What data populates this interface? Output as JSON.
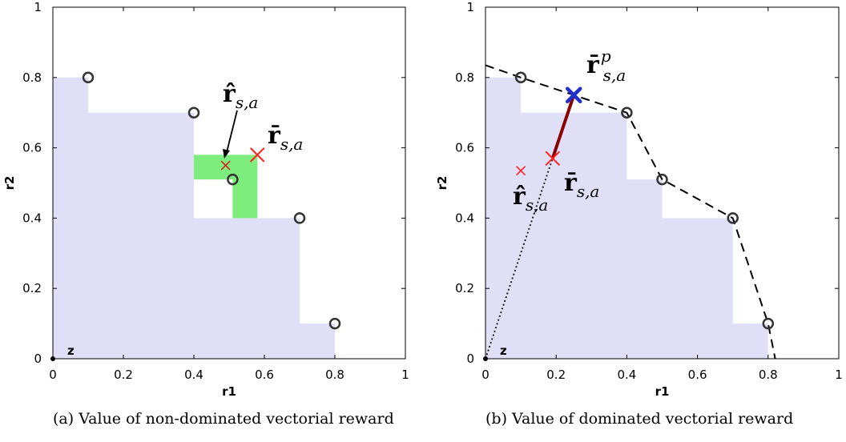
{
  "chart_data": [
    {
      "type": "scatter",
      "caption": "(a) Value of non-dominated vectorial reward",
      "xlabel": "r1",
      "ylabel": "r2",
      "xlim": [
        0,
        1
      ],
      "ylim": [
        0,
        1
      ],
      "xticks": [
        "0",
        "0.2",
        "0.4",
        "0.6",
        "0.8",
        "1"
      ],
      "yticks": [
        "0",
        "0.2",
        "0.4",
        "0.6",
        "0.8",
        "1"
      ],
      "reference_point": {
        "label": "z",
        "x": 0,
        "y": 0
      },
      "pareto_points": [
        {
          "x": 0.1,
          "y": 0.8
        },
        {
          "x": 0.4,
          "y": 0.7
        },
        {
          "x": 0.51,
          "y": 0.51
        },
        {
          "x": 0.7,
          "y": 0.4
        },
        {
          "x": 0.8,
          "y": 0.1
        }
      ],
      "dominated_region": [
        {
          "x": 0,
          "y": 0
        },
        {
          "x": 0,
          "y": 0.8
        },
        {
          "x": 0.1,
          "y": 0.8
        },
        {
          "x": 0.1,
          "y": 0.7
        },
        {
          "x": 0.4,
          "y": 0.7
        },
        {
          "x": 0.4,
          "y": 0.4
        },
        {
          "x": 0.7,
          "y": 0.4
        },
        {
          "x": 0.7,
          "y": 0.1
        },
        {
          "x": 0.8,
          "y": 0.1
        },
        {
          "x": 0.8,
          "y": 0
        }
      ],
      "gain_region": [
        {
          "x": 0.4,
          "y": 0.58
        },
        {
          "x": 0.58,
          "y": 0.58
        },
        {
          "x": 0.58,
          "y": 0.4
        },
        {
          "x": 0.51,
          "y": 0.4
        },
        {
          "x": 0.51,
          "y": 0.51
        },
        {
          "x": 0.4,
          "y": 0.51
        }
      ],
      "markers": [
        {
          "name": "r-hat",
          "x": 0.49,
          "y": 0.55,
          "color": "#d62020",
          "size": "small"
        },
        {
          "name": "r-bar",
          "x": 0.58,
          "y": 0.58,
          "color": "#ff2020",
          "size": "large"
        }
      ],
      "annotations": [
        {
          "base": "r̂",
          "sub": "s,a",
          "sup": ""
        },
        {
          "base": "r̄",
          "sub": "s,a",
          "sup": ""
        }
      ]
    },
    {
      "type": "scatter",
      "caption": "(b) Value of dominated vectorial reward",
      "xlabel": "r1",
      "ylabel": "r2",
      "xlim": [
        0,
        1
      ],
      "ylim": [
        0,
        1
      ],
      "xticks": [
        "0",
        "0.2",
        "0.4",
        "0.6",
        "0.8",
        "1"
      ],
      "yticks": [
        "0",
        "0.2",
        "0.4",
        "0.6",
        "0.8",
        "1"
      ],
      "reference_point": {
        "label": "z",
        "x": 0,
        "y": 0
      },
      "pareto_points": [
        {
          "x": 0.1,
          "y": 0.8
        },
        {
          "x": 0.4,
          "y": 0.7
        },
        {
          "x": 0.5,
          "y": 0.51
        },
        {
          "x": 0.7,
          "y": 0.4
        },
        {
          "x": 0.8,
          "y": 0.1
        }
      ],
      "dominated_region": [
        {
          "x": 0,
          "y": 0
        },
        {
          "x": 0,
          "y": 0.8
        },
        {
          "x": 0.1,
          "y": 0.8
        },
        {
          "x": 0.1,
          "y": 0.7
        },
        {
          "x": 0.4,
          "y": 0.7
        },
        {
          "x": 0.4,
          "y": 0.51
        },
        {
          "x": 0.5,
          "y": 0.51
        },
        {
          "x": 0.5,
          "y": 0.4
        },
        {
          "x": 0.7,
          "y": 0.4
        },
        {
          "x": 0.7,
          "y": 0.1
        },
        {
          "x": 0.8,
          "y": 0.1
        },
        {
          "x": 0.8,
          "y": 0
        }
      ],
      "hull_line": [
        {
          "x": 0,
          "y": 0.835
        },
        {
          "x": 0.1,
          "y": 0.8
        },
        {
          "x": 0.4,
          "y": 0.7
        },
        {
          "x": 0.5,
          "y": 0.51
        },
        {
          "x": 0.7,
          "y": 0.4
        },
        {
          "x": 0.8,
          "y": 0.1
        },
        {
          "x": 0.82,
          "y": 0
        }
      ],
      "ray_dotted": [
        {
          "x": 0,
          "y": 0
        },
        {
          "x": 0.19,
          "y": 0.57
        }
      ],
      "ray_solid": [
        {
          "x": 0.19,
          "y": 0.57
        },
        {
          "x": 0.25,
          "y": 0.75
        }
      ],
      "markers": [
        {
          "name": "r-hat",
          "x": 0.1,
          "y": 0.535,
          "color": "#ff2020",
          "size": "small"
        },
        {
          "name": "r-bar",
          "x": 0.19,
          "y": 0.57,
          "color": "#ff2020",
          "size": "large"
        },
        {
          "name": "r-bar-p",
          "x": 0.25,
          "y": 0.75,
          "color": "#1f2fd0",
          "size": "xlarge"
        }
      ],
      "annotations": [
        {
          "base": "r̄",
          "sub": "s,a",
          "sup": "p"
        },
        {
          "base": "r̄",
          "sub": "s,a",
          "sup": ""
        },
        {
          "base": "r̂",
          "sub": "s,a",
          "sup": ""
        }
      ]
    }
  ]
}
